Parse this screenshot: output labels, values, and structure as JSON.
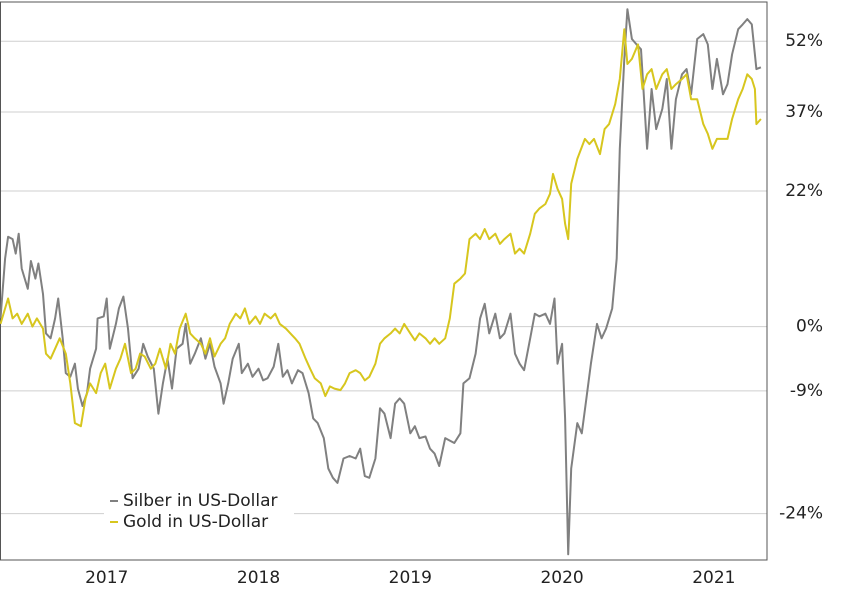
{
  "chart_data": {
    "type": "line",
    "xlim": [
      2016.3,
      2021.35
    ],
    "xticks": [
      2017,
      2018,
      2019,
      2020,
      2021
    ],
    "ylim": [
      -29,
      61
    ],
    "y_log_return_scale": true,
    "yticks": [
      {
        "value": 52,
        "label": "52%"
      },
      {
        "value": 37,
        "label": "37%"
      },
      {
        "value": 22,
        "label": "22%"
      },
      {
        "value": 0,
        "label": "0%"
      },
      {
        "value": -9,
        "label": "-9%"
      },
      {
        "value": -24,
        "label": "-24%"
      }
    ],
    "grid": true,
    "legend": "lower left",
    "series": [
      {
        "name": "Silber in US-Dollar",
        "color": "#808080",
        "x": [
          2016.3,
          2016.33,
          2016.35,
          2016.38,
          2016.4,
          2016.42,
          2016.44,
          2016.48,
          2016.5,
          2016.53,
          2016.55,
          2016.58,
          2016.6,
          2016.63,
          2016.66,
          2016.68,
          2016.71,
          2016.73,
          2016.76,
          2016.79,
          2016.81,
          2016.84,
          2016.87,
          2016.89,
          2016.93,
          2016.94,
          2016.98,
          2017.0,
          2017.02,
          2017.06,
          2017.08,
          2017.11,
          2017.14,
          2017.17,
          2017.21,
          2017.24,
          2017.27,
          2017.31,
          2017.34,
          2017.37,
          2017.4,
          2017.43,
          2017.46,
          2017.5,
          2017.52,
          2017.55,
          2017.58,
          2017.62,
          2017.65,
          2017.68,
          2017.71,
          2017.75,
          2017.77,
          2017.8,
          2017.83,
          2017.87,
          2017.89,
          2017.93,
          2017.96,
          2018.0,
          2018.03,
          2018.06,
          2018.1,
          2018.13,
          2018.16,
          2018.19,
          2018.22,
          2018.26,
          2018.29,
          2018.33,
          2018.36,
          2018.39,
          2018.43,
          2018.46,
          2018.49,
          2018.52,
          2018.56,
          2018.6,
          2018.64,
          2018.67,
          2018.7,
          2018.73,
          2018.77,
          2018.8,
          2018.83,
          2018.87,
          2018.9,
          2018.93,
          2018.96,
          2019.0,
          2019.03,
          2019.06,
          2019.1,
          2019.13,
          2019.16,
          2019.19,
          2019.23,
          2019.26,
          2019.29,
          2019.33,
          2019.35,
          2019.39,
          2019.43,
          2019.46,
          2019.49,
          2019.52,
          2019.56,
          2019.59,
          2019.62,
          2019.66,
          2019.69,
          2019.72,
          2019.75,
          2019.79,
          2019.82,
          2019.85,
          2019.89,
          2019.92,
          2019.95,
          2019.97,
          2020.0,
          2020.02,
          2020.04,
          2020.06,
          2020.1,
          2020.13,
          2020.16,
          2020.19,
          2020.23,
          2020.26,
          2020.29,
          2020.33,
          2020.36,
          2020.38,
          2020.41,
          2020.43,
          2020.46,
          2020.49,
          2020.52,
          2020.56,
          2020.59,
          2020.62,
          2020.66,
          2020.69,
          2020.72,
          2020.75,
          2020.79,
          2020.82,
          2020.85,
          2020.89,
          2020.93,
          2020.96,
          2020.99,
          2021.02,
          2021.06,
          2021.09,
          2021.12,
          2021.16,
          2021.19,
          2021.22,
          2021.25,
          2021.28,
          2021.31
        ],
        "values": [
          1.2,
          10.5,
          14.1,
          13.7,
          11.3,
          14.6,
          8.9,
          5.7,
          10.1,
          7.3,
          9.7,
          4.9,
          -1.0,
          -1.7,
          1.2,
          4.2,
          -1.7,
          -6.6,
          -7.1,
          -5.3,
          -8.7,
          -11.0,
          -9.3,
          -6.0,
          -3.2,
          1.2,
          1.5,
          4.2,
          -3.2,
          0.4,
          2.7,
          4.5,
          -0.3,
          -7.3,
          -6.0,
          -2.5,
          -4.3,
          -6.0,
          -12.0,
          -8.0,
          -4.6,
          -8.7,
          -3.2,
          -2.5,
          0.4,
          -5.3,
          -3.9,
          -1.7,
          -4.6,
          -2.5,
          -5.7,
          -8.0,
          -10.7,
          -8.0,
          -4.6,
          -2.5,
          -6.6,
          -5.3,
          -7.1,
          -6.0,
          -7.6,
          -7.3,
          -5.7,
          -2.5,
          -7.1,
          -6.2,
          -8.0,
          -6.2,
          -6.6,
          -9.3,
          -12.6,
          -13.2,
          -15.1,
          -18.8,
          -19.9,
          -20.5,
          -17.6,
          -17.3,
          -17.6,
          -16.4,
          -19.7,
          -19.9,
          -17.6,
          -11.3,
          -12.0,
          -15.1,
          -10.7,
          -10.0,
          -10.7,
          -14.5,
          -13.6,
          -15.1,
          -14.9,
          -16.4,
          -17.0,
          -18.5,
          -15.1,
          -15.4,
          -15.7,
          -14.5,
          -8.0,
          -7.3,
          -3.9,
          1.2,
          3.4,
          -1.0,
          1.9,
          -1.7,
          -1.0,
          1.9,
          -3.9,
          -5.3,
          -6.2,
          -1.7,
          1.9,
          1.5,
          1.9,
          0.4,
          4.2,
          -5.3,
          -2.5,
          -12.6,
          -28.4,
          -18.8,
          -13.2,
          -14.5,
          -10.0,
          -5.3,
          0.4,
          -1.7,
          -0.3,
          2.7,
          10.5,
          29.8,
          48.1,
          59.3,
          52.5,
          51.3,
          50.2,
          29.8,
          41.7,
          33.6,
          37.6,
          43.8,
          29.8,
          39.6,
          44.8,
          45.9,
          40.6,
          52.5,
          53.6,
          51.3,
          41.7,
          48.1,
          40.6,
          42.7,
          49.1,
          54.7,
          55.8,
          57.0,
          55.8,
          45.9,
          46.3
        ]
      },
      {
        "name": "Gold in US-Dollar",
        "color": "#d7c61e",
        "x": [
          2016.3,
          2016.33,
          2016.35,
          2016.38,
          2016.41,
          2016.44,
          2016.48,
          2016.51,
          2016.54,
          2016.58,
          2016.6,
          2016.63,
          2016.66,
          2016.69,
          2016.73,
          2016.76,
          2016.79,
          2016.83,
          2016.86,
          2016.89,
          2016.93,
          2016.96,
          2016.99,
          2017.02,
          2017.06,
          2017.09,
          2017.12,
          2017.16,
          2017.19,
          2017.22,
          2017.25,
          2017.29,
          2017.32,
          2017.35,
          2017.39,
          2017.42,
          2017.45,
          2017.48,
          2017.52,
          2017.55,
          2017.58,
          2017.62,
          2017.65,
          2017.68,
          2017.71,
          2017.75,
          2017.78,
          2017.81,
          2017.85,
          2017.88,
          2017.91,
          2017.94,
          2017.98,
          2018.01,
          2018.04,
          2018.08,
          2018.11,
          2018.14,
          2018.18,
          2018.21,
          2018.24,
          2018.27,
          2018.31,
          2018.34,
          2018.37,
          2018.41,
          2018.44,
          2018.47,
          2018.5,
          2018.54,
          2018.57,
          2018.6,
          2018.64,
          2018.67,
          2018.7,
          2018.73,
          2018.77,
          2018.8,
          2018.83,
          2018.87,
          2018.9,
          2018.93,
          2018.96,
          2019.0,
          2019.03,
          2019.06,
          2019.1,
          2019.13,
          2019.16,
          2019.19,
          2019.23,
          2019.26,
          2019.29,
          2019.33,
          2019.36,
          2019.39,
          2019.43,
          2019.46,
          2019.49,
          2019.52,
          2019.56,
          2019.59,
          2019.62,
          2019.66,
          2019.69,
          2019.72,
          2019.75,
          2019.79,
          2019.82,
          2019.85,
          2019.89,
          2019.92,
          2019.94,
          2019.97,
          2020.0,
          2020.02,
          2020.04,
          2020.06,
          2020.1,
          2020.15,
          2020.18,
          2020.21,
          2020.25,
          2020.28,
          2020.31,
          2020.35,
          2020.38,
          2020.41,
          2020.43,
          2020.46,
          2020.5,
          2020.53,
          2020.56,
          2020.59,
          2020.62,
          2020.66,
          2020.69,
          2020.72,
          2020.75,
          2020.79,
          2020.82,
          2020.85,
          2020.89,
          2020.93,
          2020.96,
          2020.99,
          2021.02,
          2021.06,
          2021.09,
          2021.12,
          2021.16,
          2021.19,
          2021.22,
          2021.25,
          2021.27,
          2021.28,
          2021.31
        ],
        "values": [
          0.4,
          2.7,
          4.2,
          1.2,
          1.9,
          0.4,
          1.9,
          0,
          1.2,
          -0.3,
          -3.9,
          -4.6,
          -3.2,
          -1.7,
          -3.9,
          -8.0,
          -13.2,
          -13.6,
          -10.0,
          -8.0,
          -9.3,
          -6.6,
          -5.3,
          -8.7,
          -6.0,
          -4.6,
          -2.5,
          -6.6,
          -6.0,
          -3.9,
          -4.3,
          -6.0,
          -5.3,
          -3.2,
          -6.0,
          -2.5,
          -3.9,
          -0.3,
          1.9,
          -1.0,
          -1.7,
          -2.5,
          -3.9,
          -1.7,
          -4.3,
          -2.5,
          -1.7,
          0.4,
          1.9,
          1.2,
          2.7,
          0.4,
          1.5,
          0.4,
          1.9,
          1.2,
          1.9,
          0.4,
          -0.3,
          -1.0,
          -1.7,
          -2.5,
          -4.6,
          -6.0,
          -7.3,
          -8.0,
          -9.7,
          -8.4,
          -8.7,
          -8.9,
          -8.0,
          -6.6,
          -6.2,
          -6.6,
          -7.6,
          -7.1,
          -5.3,
          -2.5,
          -1.7,
          -1.0,
          -0.3,
          -1.0,
          0.4,
          -1.0,
          -2.0,
          -1.0,
          -1.7,
          -2.5,
          -1.7,
          -2.5,
          -1.7,
          1.2,
          6.5,
          7.3,
          8.1,
          13.7,
          14.6,
          13.7,
          15.4,
          13.7,
          14.6,
          12.9,
          13.7,
          14.6,
          11.3,
          12.1,
          11.3,
          14.6,
          18.0,
          18.9,
          19.7,
          21.5,
          25.1,
          22.4,
          20.6,
          16.3,
          13.7,
          23.3,
          27.9,
          31.7,
          30.7,
          31.7,
          28.8,
          33.6,
          34.6,
          38.6,
          43.8,
          54.7,
          47.0,
          48.1,
          51.3,
          41.7,
          44.8,
          45.9,
          41.7,
          44.8,
          45.9,
          41.7,
          42.7,
          43.8,
          44.8,
          39.6,
          39.6,
          34.6,
          32.7,
          29.8,
          31.7,
          31.7,
          31.7,
          35.6,
          39.6,
          41.7,
          44.8,
          43.8,
          41.7,
          34.6,
          35.6
        ]
      }
    ]
  }
}
